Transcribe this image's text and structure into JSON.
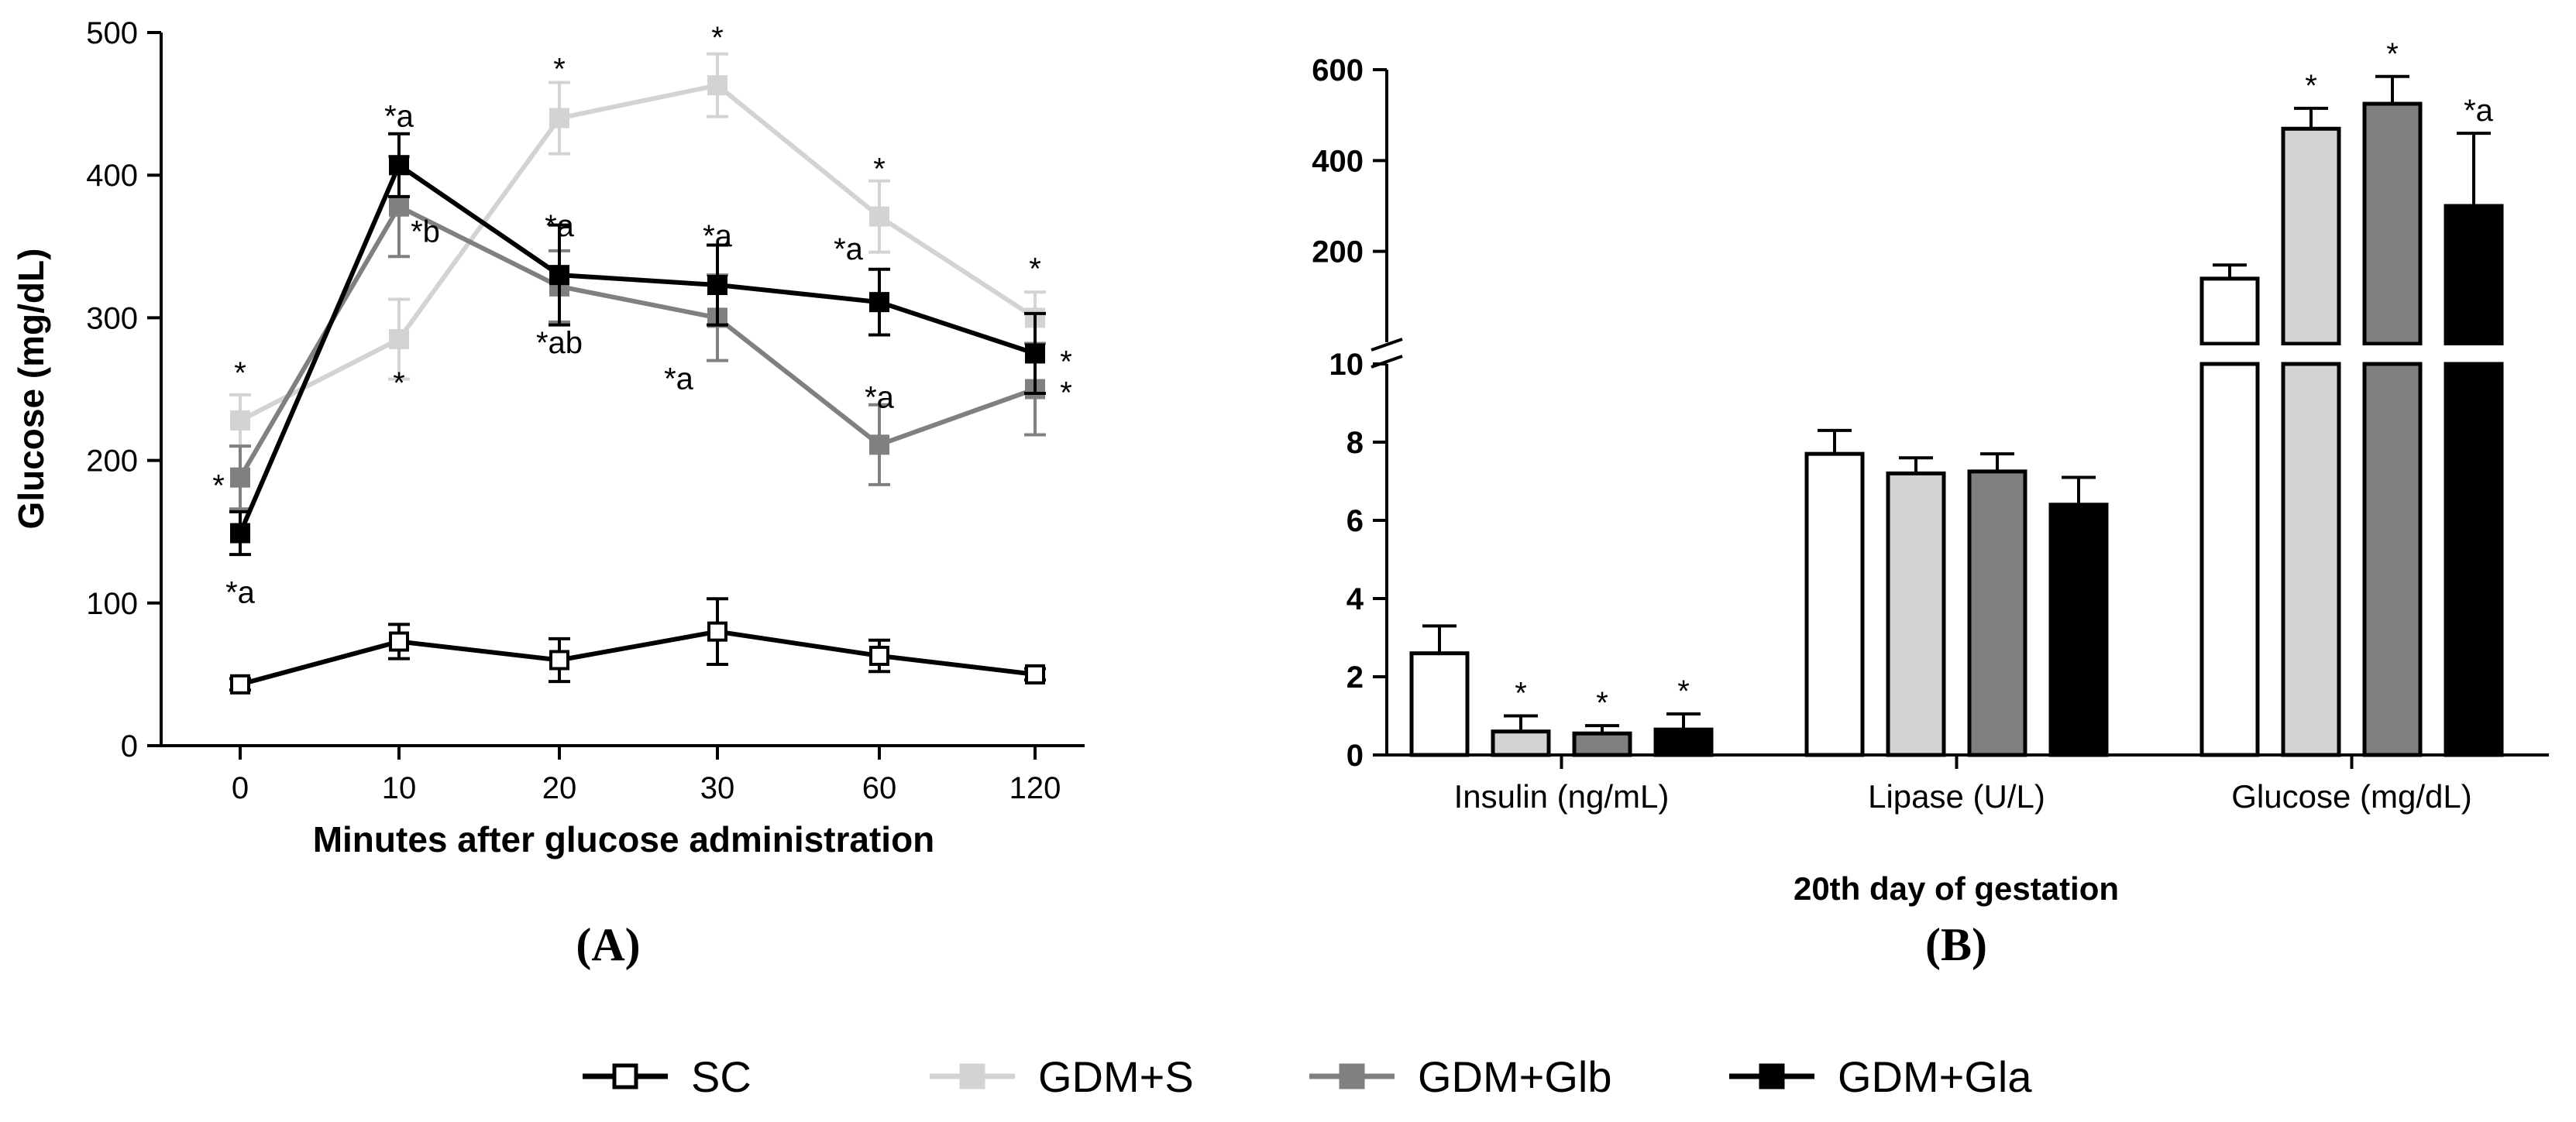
{
  "panel_labels": {
    "a": "(A)",
    "b": "(B)"
  },
  "legend": [
    {
      "name": "SC",
      "color": "#000000",
      "marker": "open-square"
    },
    {
      "name": "GDM+S",
      "color": "#d3d3d3",
      "marker": "square"
    },
    {
      "name": "GDM+Glb",
      "color": "#808080",
      "marker": "square"
    },
    {
      "name": "GDM+Gla",
      "color": "#000000",
      "marker": "square"
    }
  ],
  "chart_data": [
    {
      "id": "A",
      "type": "line",
      "title": "",
      "xlabel": "Minutes after glucose administration",
      "ylabel": "Glucose (mg/dL)",
      "categories": [
        "0",
        "10",
        "20",
        "30",
        "60",
        "120"
      ],
      "ylim": [
        0,
        500
      ],
      "yticks": [
        0,
        100,
        200,
        300,
        400,
        500
      ],
      "series": [
        {
          "name": "SC",
          "color": "#000000",
          "open": true,
          "values": [
            43,
            73,
            60,
            80,
            63,
            50
          ],
          "errors": [
            4,
            12,
            15,
            23,
            11,
            4
          ],
          "labels": [
            "",
            "",
            "",
            "",
            "",
            ""
          ]
        },
        {
          "name": "GDM+S",
          "color": "#d3d3d3",
          "open": false,
          "values": [
            228,
            285,
            440,
            463,
            371,
            300
          ],
          "errors": [
            18,
            28,
            25,
            22,
            25,
            18
          ],
          "labels": [
            "*",
            "*",
            "*",
            "*",
            "*",
            "*"
          ]
        },
        {
          "name": "GDM+Glb",
          "color": "#808080",
          "open": false,
          "values": [
            188,
            378,
            322,
            300,
            211,
            250
          ],
          "errors": [
            22,
            35,
            25,
            30,
            28,
            32
          ],
          "labels": [
            "*",
            "*b",
            "*ab",
            "*a",
            "*a",
            "*"
          ]
        },
        {
          "name": "GDM+Gla",
          "color": "#000000",
          "open": false,
          "values": [
            149,
            407,
            330,
            323,
            311,
            275
          ],
          "errors": [
            15,
            22,
            35,
            28,
            23,
            28
          ],
          "labels": [
            "*a",
            "*a",
            "*a",
            "*a",
            "*a",
            "*"
          ]
        }
      ]
    },
    {
      "id": "B",
      "type": "bar",
      "title": "",
      "xlabel": "20th day of gestation",
      "ylabel": "",
      "categories": [
        "Insulin (ng/mL)",
        "Lipase  (U/L)",
        "Glucose (mg/dL)"
      ],
      "ylim_lower": [
        0,
        10
      ],
      "yticks_lower": [
        0,
        2,
        4,
        6,
        8,
        10
      ],
      "ylim_upper": [
        0,
        600
      ],
      "yticks_upper": [
        200,
        400,
        600
      ],
      "axis_break": true,
      "series": [
        {
          "name": "SC",
          "color": "#ffffff",
          "values": [
            2.6,
            7.7,
            140
          ],
          "errors": [
            0.7,
            0.6,
            30
          ],
          "labels": [
            "",
            "",
            ""
          ]
        },
        {
          "name": "GDM+S",
          "color": "#d3d3d3",
          "values": [
            0.6,
            7.2,
            470
          ],
          "errors": [
            0.4,
            0.4,
            45
          ],
          "labels": [
            "*",
            "",
            "*"
          ]
        },
        {
          "name": "GDM+Glb",
          "color": "#808080",
          "values": [
            0.55,
            7.25,
            525
          ],
          "errors": [
            0.2,
            0.45,
            60
          ],
          "labels": [
            "*",
            "",
            "*"
          ]
        },
        {
          "name": "GDM+Gla",
          "color": "#000000",
          "values": [
            0.65,
            6.4,
            300
          ],
          "errors": [
            0.4,
            0.7,
            160
          ],
          "labels": [
            "*",
            "",
            "*a"
          ]
        }
      ]
    }
  ]
}
